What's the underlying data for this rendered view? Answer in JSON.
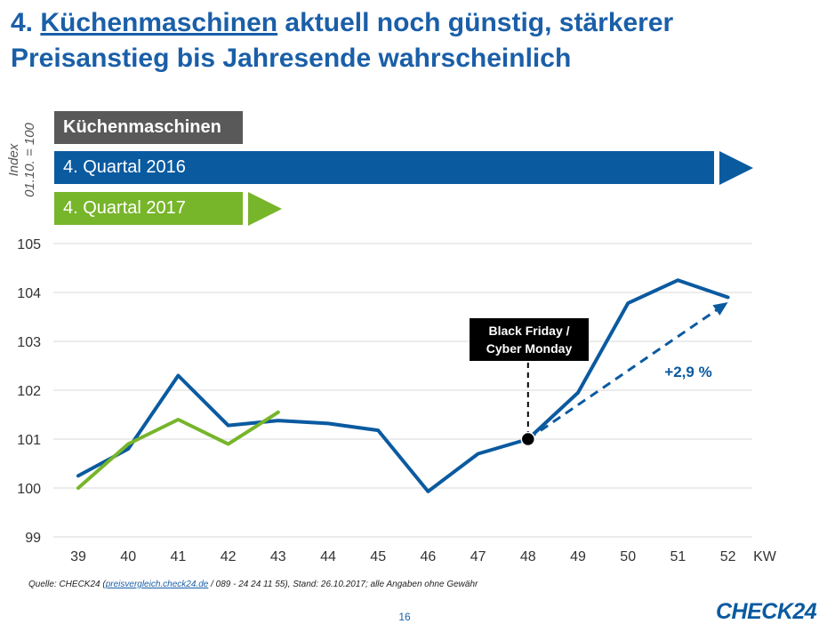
{
  "title": {
    "prefix": "4. ",
    "highlight": "Küchenmaschinen",
    "rest": " aktuell noch günstig, stärkerer Preisanstieg bis Jahresende wahrscheinlich"
  },
  "legend": {
    "category": "Küchenmaschinen",
    "series_2016": "4. Quartal 2016",
    "series_2017": "4. Quartal 2017"
  },
  "annotation": {
    "event_line1": "Black Friday /",
    "event_line2": "Cyber Monday",
    "increase": "+2,9 %"
  },
  "footer": {
    "source_prefix": "Quelle: CHECK24 (",
    "source_link": "preisvergleich.check24.de",
    "source_suffix": " / 089 - 24 24 11 55), Stand: 26.10.2017; alle Angaben ohne Gewähr",
    "page": "16",
    "logo": "CHECK24"
  },
  "colors": {
    "blue": "#0a5aa0",
    "green": "#77b52a",
    "grey": "#595959",
    "title": "#1a5fa8"
  },
  "chart_data": {
    "type": "line",
    "ylabel_line1": "Index",
    "ylabel_line2": "01.10. = 100",
    "xlabel": "KW",
    "x": [
      39,
      40,
      41,
      42,
      43,
      44,
      45,
      46,
      47,
      48,
      49,
      50,
      51,
      52
    ],
    "ylim": [
      99,
      105
    ],
    "yticks": [
      99,
      100,
      101,
      102,
      103,
      104,
      105
    ],
    "grid": true,
    "series": [
      {
        "name": "4. Quartal 2016",
        "color": "#0a5aa0",
        "values": [
          100.25,
          100.8,
          102.3,
          101.28,
          101.38,
          101.32,
          101.18,
          99.93,
          100.7,
          101.0,
          101.95,
          103.78,
          104.25,
          103.9
        ]
      },
      {
        "name": "4. Quartal 2017",
        "color": "#77b52a",
        "values": [
          100.0,
          100.9,
          101.4,
          100.9,
          101.55,
          null,
          null,
          null,
          null,
          null,
          null,
          null,
          null,
          null
        ]
      }
    ],
    "trend": {
      "from": [
        48,
        101.0
      ],
      "to": [
        52,
        103.8
      ],
      "label": "+2,9 %"
    },
    "marker": {
      "x": 48,
      "y": 101.0
    }
  }
}
